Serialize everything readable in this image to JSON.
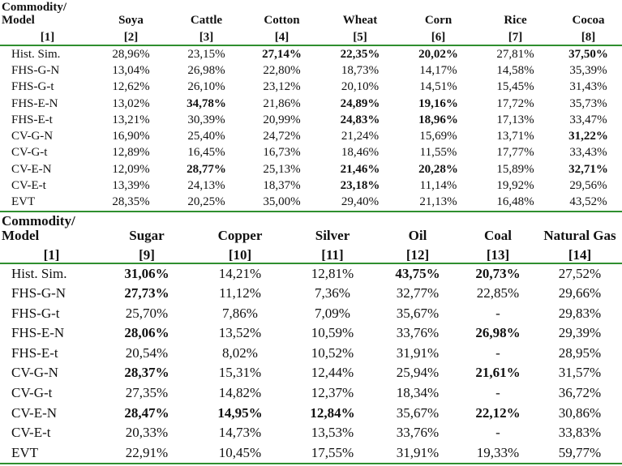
{
  "table1": {
    "headers": [
      "Commodity/ Model",
      "Soya",
      "Cattle",
      "Cotton",
      "Wheat",
      "Corn",
      "Rice",
      "Cocoa"
    ],
    "numbers": [
      "[1]",
      "[2]",
      "[3]",
      "[4]",
      "[5]",
      "[6]",
      "[7]",
      "[8]"
    ],
    "rows": [
      {
        "label": "Hist. Sim.",
        "values": [
          "28,96%",
          "23,15%",
          "27,14%",
          "22,35%",
          "20,02%",
          "27,81%",
          "37,50%"
        ]
      },
      {
        "label": "FHS-G-N",
        "values": [
          "13,04%",
          "26,98%",
          "22,80%",
          "18,73%",
          "14,17%",
          "14,58%",
          "35,39%"
        ]
      },
      {
        "label": "FHS-G-t",
        "values": [
          "12,62%",
          "26,10%",
          "23,12%",
          "20,10%",
          "14,51%",
          "15,45%",
          "31,43%"
        ]
      },
      {
        "label": "FHS-E-N",
        "values": [
          "13,02%",
          "34,78%",
          "21,86%",
          "24,89%",
          "19,16%",
          "17,72%",
          "35,73%"
        ]
      },
      {
        "label": "FHS-E-t",
        "values": [
          "13,21%",
          "30,39%",
          "20,99%",
          "24,83%",
          "18,96%",
          "17,13%",
          "33,47%"
        ]
      },
      {
        "label": "CV-G-N",
        "values": [
          "16,90%",
          "25,40%",
          "24,72%",
          "21,24%",
          "15,69%",
          "13,71%",
          "31,22%"
        ]
      },
      {
        "label": "CV-G-t",
        "values": [
          "12,89%",
          "16,45%",
          "16,73%",
          "18,46%",
          "11,55%",
          "17,77%",
          "33,43%"
        ]
      },
      {
        "label": "CV-E-N",
        "values": [
          "12,09%",
          "28,77%",
          "25,13%",
          "21,46%",
          "20,28%",
          "15,89%",
          "32,71%"
        ]
      },
      {
        "label": "CV-E-t",
        "values": [
          "13,39%",
          "24,13%",
          "18,37%",
          "23,18%",
          "11,14%",
          "19,92%",
          "29,56%"
        ]
      },
      {
        "label": "EVT",
        "values": [
          "28,35%",
          "20,25%",
          "35,00%",
          "29,40%",
          "21,13%",
          "16,48%",
          "43,52%"
        ]
      }
    ],
    "bold": [
      [
        0,
        2
      ],
      [
        0,
        3
      ],
      [
        0,
        4
      ],
      [
        0,
        6
      ],
      [
        3,
        1
      ],
      [
        3,
        3
      ],
      [
        3,
        4
      ],
      [
        4,
        3
      ],
      [
        4,
        4
      ],
      [
        5,
        6
      ],
      [
        7,
        1
      ],
      [
        7,
        3
      ],
      [
        7,
        4
      ],
      [
        7,
        6
      ],
      [
        8,
        3
      ]
    ]
  },
  "table2": {
    "headers": [
      "Commodity/ Model",
      "Sugar",
      "Copper",
      "Silver",
      "Oil",
      "Coal",
      "Natural Gas"
    ],
    "numbers": [
      "[1]",
      "[9]",
      "[10]",
      "[11]",
      "[12]",
      "[13]",
      "[14]"
    ],
    "rows": [
      {
        "label": "Hist. Sim.",
        "values": [
          "31,06%",
          "14,21%",
          "12,81%",
          "43,75%",
          "20,73%",
          "27,52%"
        ]
      },
      {
        "label": "FHS-G-N",
        "values": [
          "27,73%",
          "11,12%",
          "7,36%",
          "32,77%",
          "22,85%",
          "29,66%"
        ]
      },
      {
        "label": "FHS-G-t",
        "values": [
          "25,70%",
          "7,86%",
          "7,09%",
          "35,67%",
          "-",
          "29,83%"
        ]
      },
      {
        "label": "FHS-E-N",
        "values": [
          "28,06%",
          "13,52%",
          "10,59%",
          "33,76%",
          "26,98%",
          "29,39%"
        ]
      },
      {
        "label": "FHS-E-t",
        "values": [
          "20,54%",
          "8,02%",
          "10,52%",
          "31,91%",
          "-",
          "28,95%"
        ]
      },
      {
        "label": "CV-G-N",
        "values": [
          "28,37%",
          "15,31%",
          "12,44%",
          "25,94%",
          "21,61%",
          "31,57%"
        ]
      },
      {
        "label": "CV-G-t",
        "values": [
          "27,35%",
          "14,82%",
          "12,37%",
          "18,34%",
          "-",
          "36,72%"
        ]
      },
      {
        "label": "CV-E-N",
        "values": [
          "28,47%",
          "14,95%",
          "12,84%",
          "35,67%",
          "22,12%",
          "30,86%"
        ]
      },
      {
        "label": "CV-E-t",
        "values": [
          "20,33%",
          "14,73%",
          "13,53%",
          "33,76%",
          "-",
          "33,83%"
        ]
      },
      {
        "label": "EVT",
        "values": [
          "22,91%",
          "10,45%",
          "17,55%",
          "31,91%",
          "19,33%",
          "59,77%"
        ]
      }
    ],
    "bold": [
      [
        0,
        0
      ],
      [
        0,
        3
      ],
      [
        0,
        4
      ],
      [
        1,
        0
      ],
      [
        3,
        0
      ],
      [
        3,
        4
      ],
      [
        5,
        0
      ],
      [
        5,
        4
      ],
      [
        7,
        0
      ],
      [
        7,
        1
      ],
      [
        7,
        2
      ],
      [
        7,
        4
      ]
    ]
  }
}
